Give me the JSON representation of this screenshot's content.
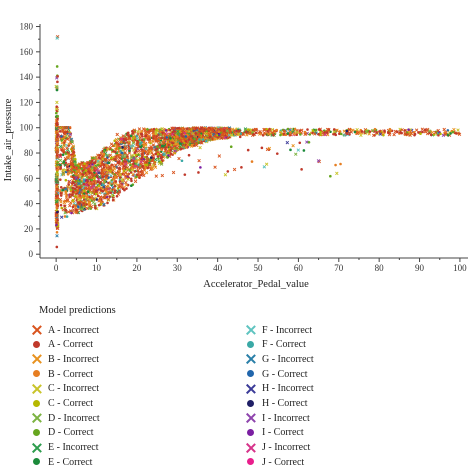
{
  "chart_data": {
    "type": "scatter",
    "xlabel": "Accelerator_Pedal_value",
    "ylabel": "Intake_air_pressure",
    "xlim": [
      -4,
      102
    ],
    "ylim": [
      -3,
      182
    ],
    "xticks": [
      0,
      10,
      20,
      30,
      40,
      50,
      60,
      70,
      80,
      90,
      100
    ],
    "yticks": [
      0,
      20,
      40,
      60,
      80,
      100,
      120,
      140,
      160,
      180
    ],
    "xtick_labels": [
      "0",
      "10",
      "20",
      "30",
      "40",
      "50",
      "60",
      "70",
      "80",
      "90",
      "100"
    ],
    "ytick_labels": [
      "0",
      "20",
      "40",
      "60",
      "80",
      "100",
      "120",
      "140",
      "160",
      "180"
    ],
    "grid": false,
    "legend_title": "Model predictions",
    "legend_placement": "bottom",
    "series": [
      {
        "name": "A - Incorrect",
        "marker": "x",
        "color": "#d9541e"
      },
      {
        "name": "A - Correct",
        "marker": "o",
        "color": "#c0392b"
      },
      {
        "name": "B - Incorrect",
        "marker": "x",
        "color": "#e8921f"
      },
      {
        "name": "B - Correct",
        "marker": "o",
        "color": "#e67e22"
      },
      {
        "name": "C - Incorrect",
        "marker": "x",
        "color": "#c9c42a"
      },
      {
        "name": "C - Correct",
        "marker": "o",
        "color": "#b5b800"
      },
      {
        "name": "D - Incorrect",
        "marker": "x",
        "color": "#7cb342"
      },
      {
        "name": "D - Correct",
        "marker": "o",
        "color": "#66a61e"
      },
      {
        "name": "E - Incorrect",
        "marker": "x",
        "color": "#2e9d4e"
      },
      {
        "name": "E - Correct",
        "marker": "o",
        "color": "#1b8a3a"
      },
      {
        "name": "F - Incorrect",
        "marker": "x",
        "color": "#5fc4c0"
      },
      {
        "name": "F - Correct",
        "marker": "o",
        "color": "#3aa9a6"
      },
      {
        "name": "G - Incorrect",
        "marker": "x",
        "color": "#2a7fa8"
      },
      {
        "name": "G - Correct",
        "marker": "o",
        "color": "#2166ac"
      },
      {
        "name": "H - Incorrect",
        "marker": "x",
        "color": "#3b3b98"
      },
      {
        "name": "H - Correct",
        "marker": "o",
        "color": "#1f1f66"
      },
      {
        "name": "I - Incorrect",
        "marker": "x",
        "color": "#8e44ad"
      },
      {
        "name": "I - Correct",
        "marker": "o",
        "color": "#7b1fa2"
      },
      {
        "name": "J - Incorrect",
        "marker": "x",
        "color": "#d6338a"
      },
      {
        "name": "J - Correct",
        "marker": "o",
        "color": "#e91e8c"
      }
    ],
    "trend": {
      "description_points": [
        {
          "x": 0,
          "y_min": 0,
          "y_max": 178
        },
        {
          "x": 5,
          "y_min": 25,
          "y_max": 70
        },
        {
          "x": 10,
          "y_min": 28,
          "y_max": 78
        },
        {
          "x": 15,
          "y_min": 35,
          "y_max": 92
        },
        {
          "x": 20,
          "y_min": 50,
          "y_max": 99
        },
        {
          "x": 30,
          "y_min": 78,
          "y_max": 100
        },
        {
          "x": 40,
          "y_min": 90,
          "y_max": 100
        },
        {
          "x": 60,
          "y_min": 93,
          "y_max": 99
        },
        {
          "x": 100,
          "y_min": 94,
          "y_max": 99
        }
      ]
    }
  }
}
